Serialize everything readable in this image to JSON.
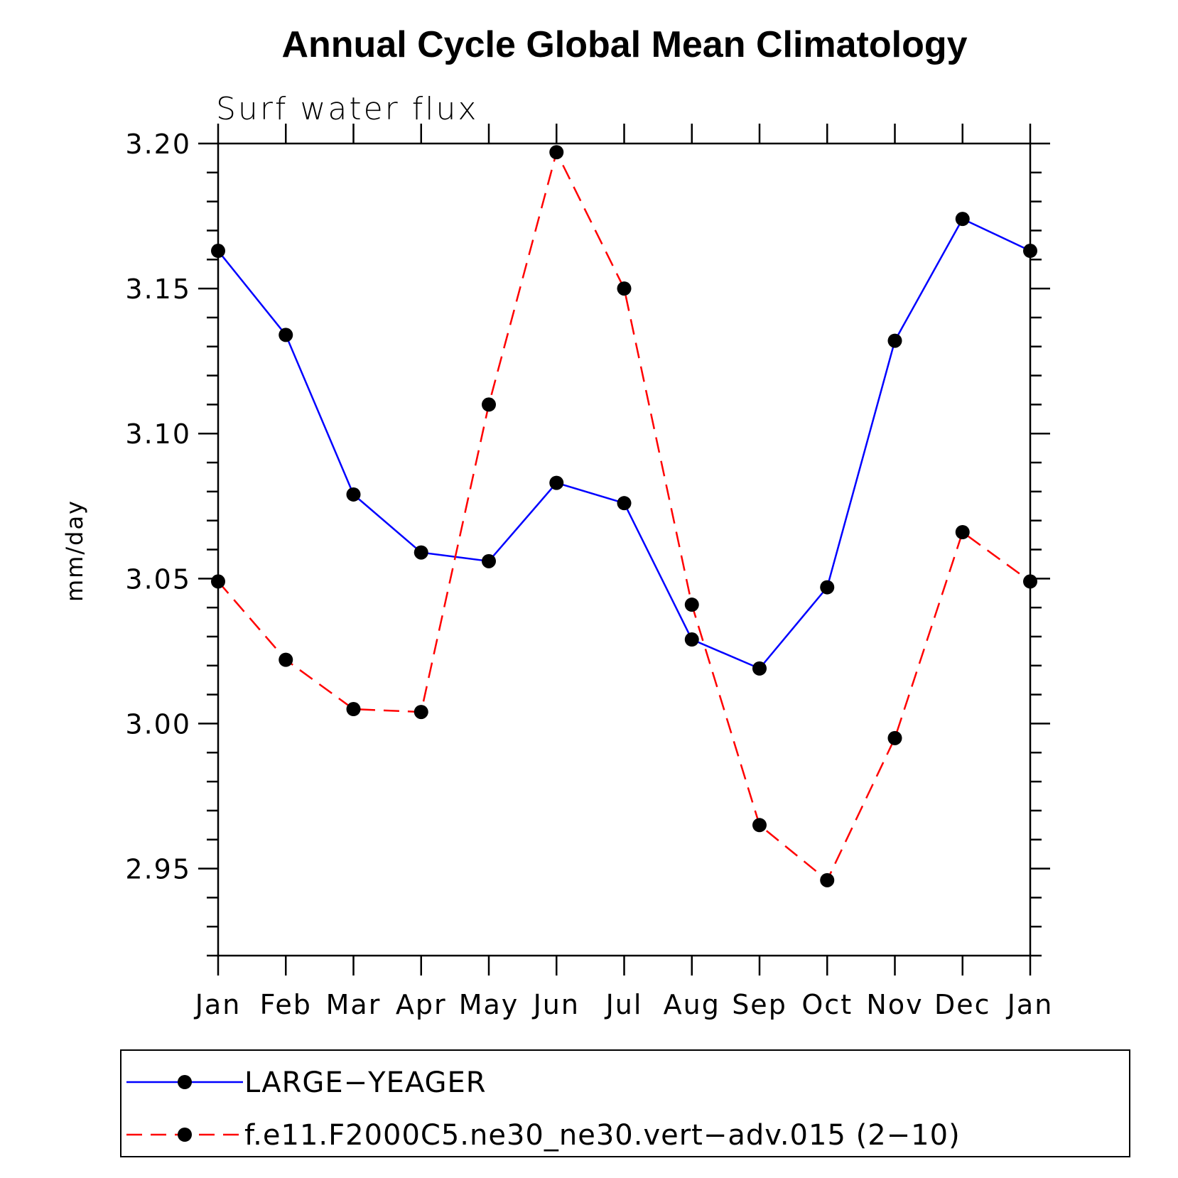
{
  "chart_data": {
    "type": "line",
    "title": "Annual Cycle Global Mean Climatology",
    "subtitle": "Surf water flux",
    "xlabel": "",
    "ylabel": "mm/day",
    "categories": [
      "Jan",
      "Feb",
      "Mar",
      "Apr",
      "May",
      "Jun",
      "Jul",
      "Aug",
      "Sep",
      "Oct",
      "Nov",
      "Dec",
      "Jan"
    ],
    "ylim": [
      2.92,
      3.2
    ],
    "y_ticks": [
      "3.20",
      "3.15",
      "3.10",
      "3.05",
      "3.00",
      "2.95"
    ],
    "y_tick_values": [
      3.2,
      3.15,
      3.1,
      3.05,
      3.0,
      2.95
    ],
    "grid": false,
    "legend_position": "bottom",
    "series": [
      {
        "name": "LARGE−YEAGER",
        "color": "#0000ff",
        "style": "solid",
        "marker": "filled-circle",
        "values": [
          3.163,
          3.134,
          3.079,
          3.059,
          3.056,
          3.083,
          3.076,
          3.029,
          3.019,
          3.047,
          3.132,
          3.174,
          3.163
        ]
      },
      {
        "name": "f.e11.F2000C5.ne30_ne30.vert−adv.015 (2−10)",
        "color": "#ff0000",
        "style": "dashed",
        "marker": "filled-circle",
        "values": [
          3.049,
          3.022,
          3.005,
          3.004,
          3.11,
          3.197,
          3.15,
          3.041,
          2.965,
          2.946,
          2.995,
          3.066,
          3.049
        ]
      }
    ]
  }
}
